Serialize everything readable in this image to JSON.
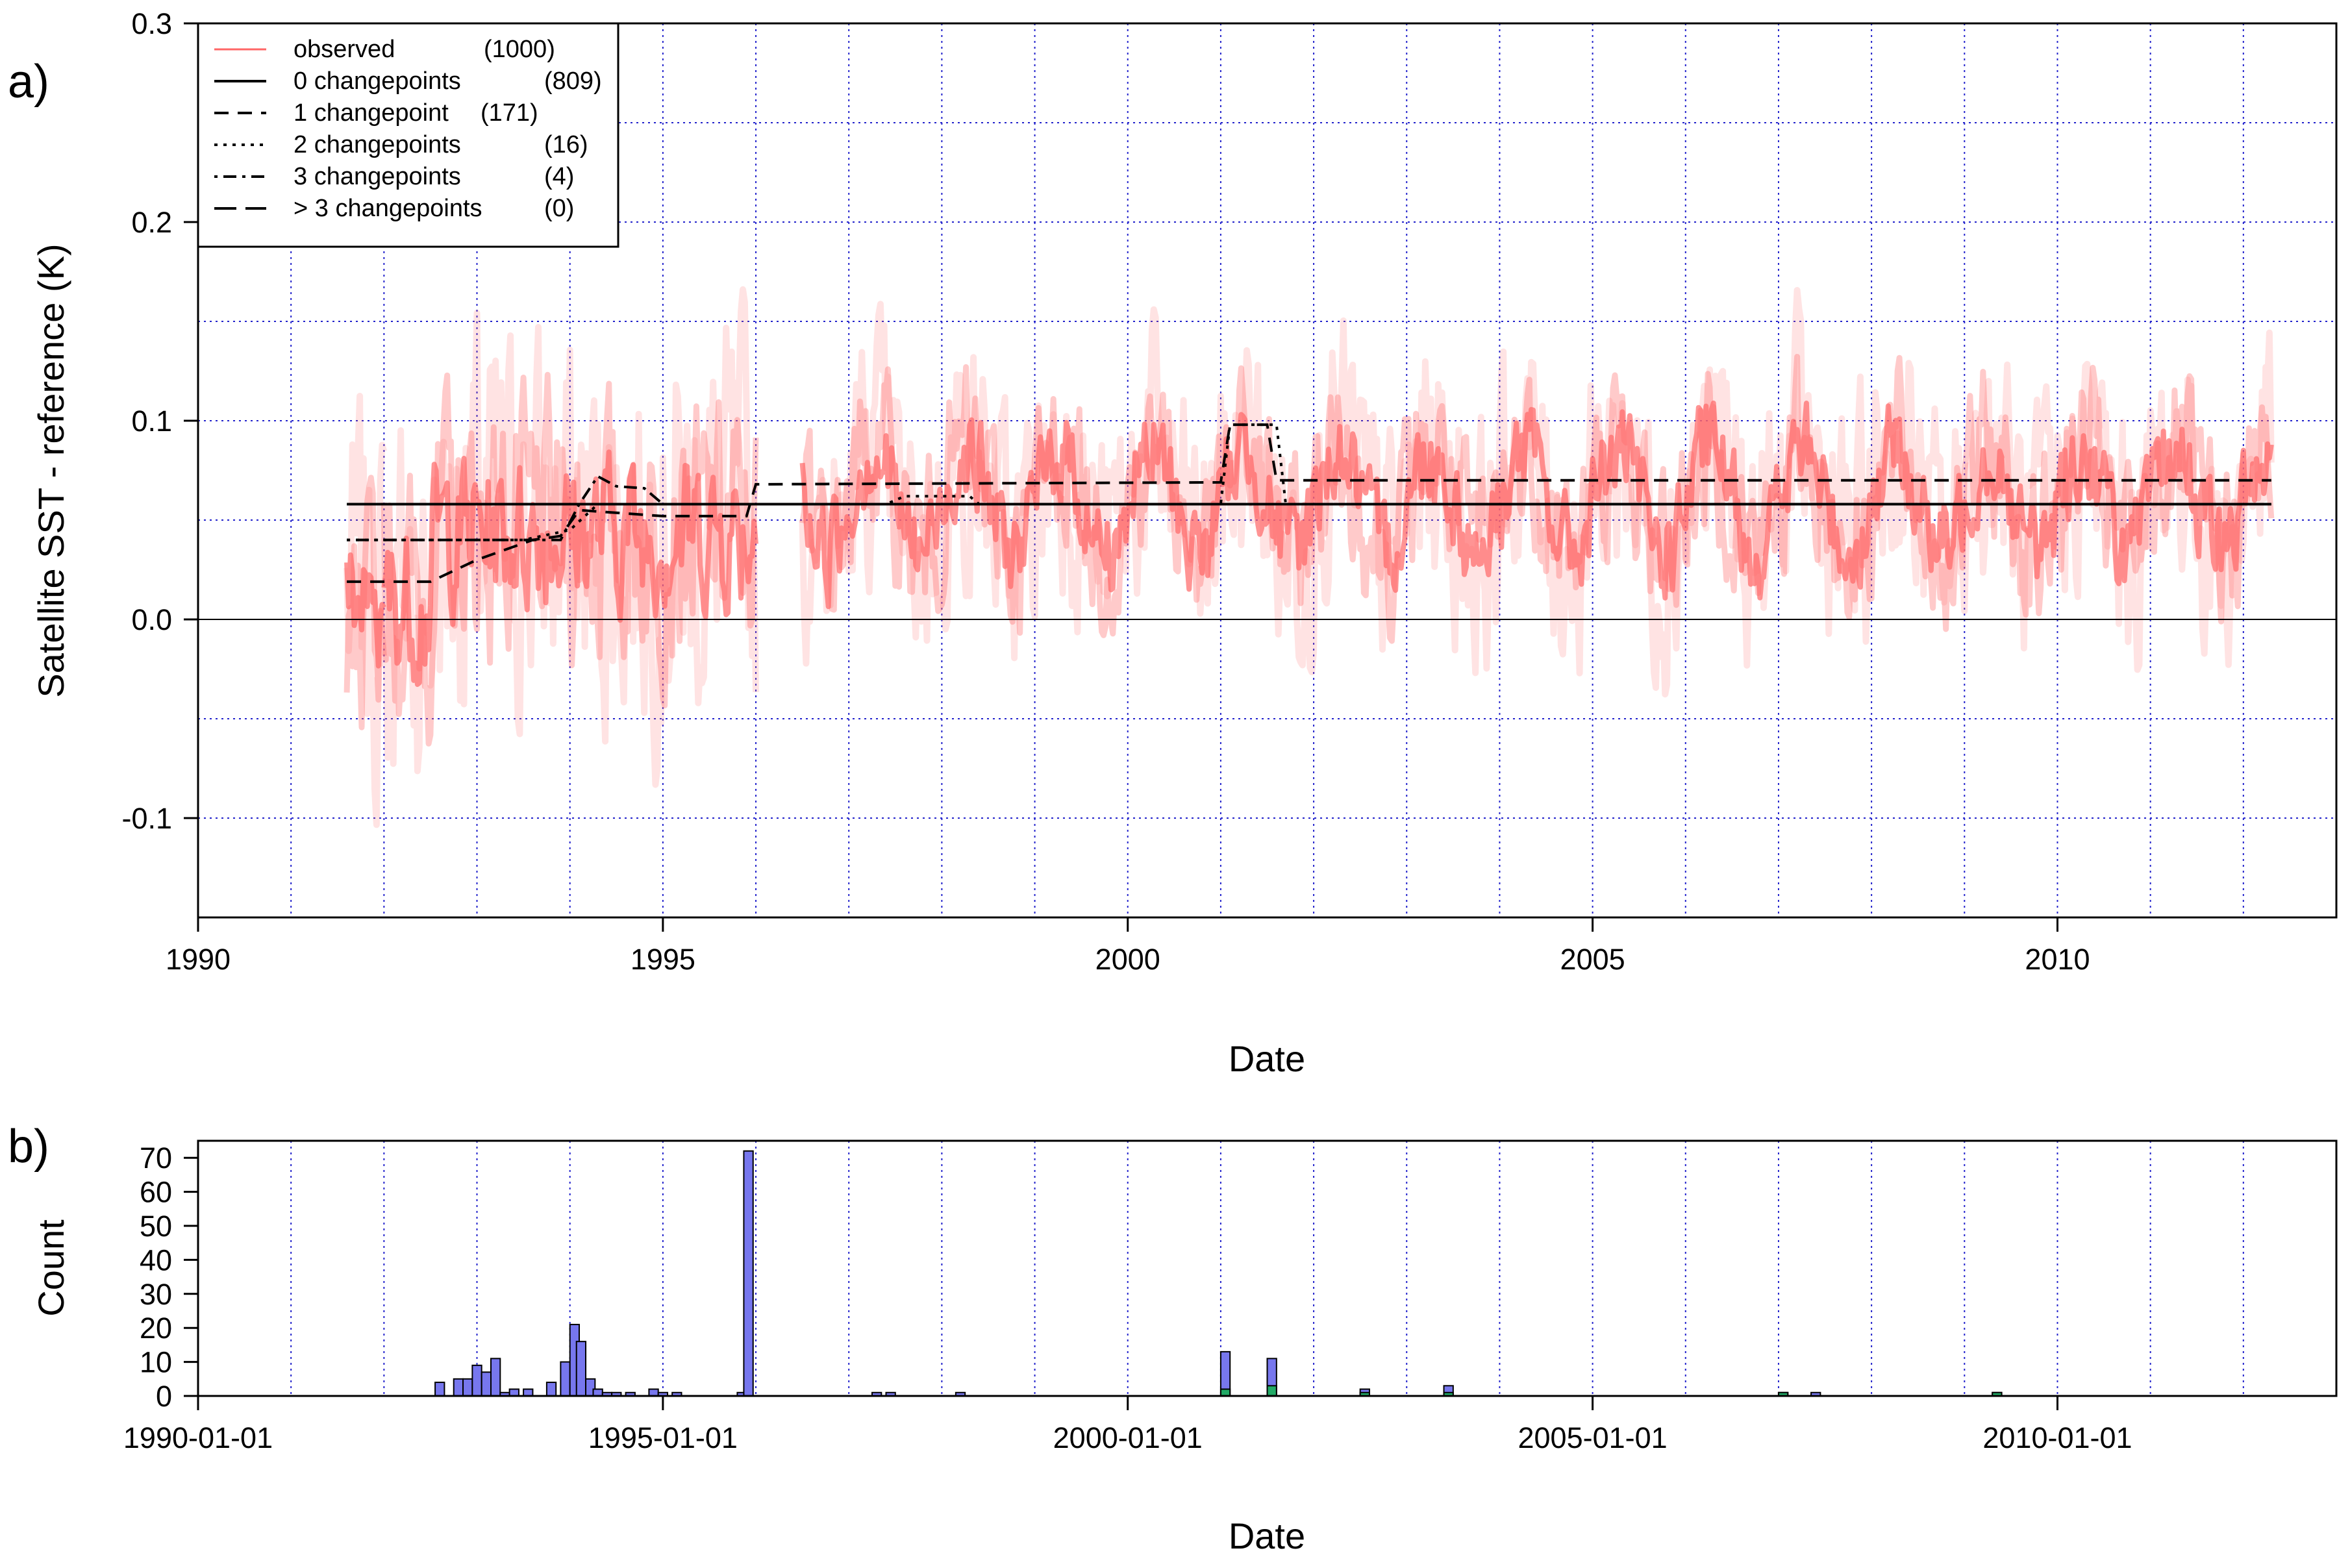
{
  "colors": {
    "observed": "#ff6666",
    "grid": "#2222cc",
    "hist_main": "#7777ee",
    "hist_sub": "#22aa66"
  },
  "chart_data": [
    {
      "type": "line",
      "panel_label": "a)",
      "xlabel": "Date",
      "ylabel": "Satellite SST - reference (K)",
      "xlim": [
        1990,
        2013
      ],
      "ylim": [
        -0.15,
        0.3
      ],
      "x_ticks": [
        1990,
        1995,
        2000,
        2005,
        2010
      ],
      "x_tick_labels": [
        "1990",
        "1995",
        "2000",
        "2005",
        "2010"
      ],
      "y_ticks": [
        -0.1,
        0.0,
        0.1,
        0.2,
        0.3
      ],
      "y_tick_labels": [
        "-0.1",
        "0.0",
        "0.1",
        "0.2",
        "0.3"
      ],
      "legend_position": "top-left",
      "legend": [
        {
          "label": "observed",
          "count": "(1000)",
          "style": "red"
        },
        {
          "label": "0 changepoints",
          "count": "(809)",
          "style": "solid"
        },
        {
          "label": "1 changepoint",
          "count": "(171)",
          "style": "dashed"
        },
        {
          "label": "2 changepoints",
          "count": "(16)",
          "style": "dotted"
        },
        {
          "label": "3 changepoints",
          "count": "(4)",
          "style": "dotdash"
        },
        {
          "label": "> 3 changepoints",
          "count": "(0)",
          "style": "longdash"
        }
      ],
      "observed_segments": [
        [
          1991.6,
          1992.0
        ],
        [
          1992.0,
          1996.0
        ],
        [
          1996.5,
          2012.3
        ]
      ],
      "series": [
        {
          "name": "0 changepoints",
          "style": "solid",
          "x": [
            1991.6,
            2012.3
          ],
          "y": [
            0.058,
            0.058
          ]
        },
        {
          "name": "1 changepoint",
          "style": "dashed",
          "x": [
            1991.6,
            1992.5,
            1993.0,
            1993.6,
            1993.9,
            1994.1,
            1995.0,
            1995.9,
            1996.0,
            2001.0,
            2001.1,
            2001.5,
            2001.6,
            2012.3
          ],
          "y": [
            0.019,
            0.019,
            0.03,
            0.04,
            0.042,
            0.055,
            0.052,
            0.052,
            0.068,
            0.069,
            0.098,
            0.098,
            0.07,
            0.07
          ]
        },
        {
          "name": "2 changepoints",
          "style": "dotted",
          "x": [
            1991.6,
            1993.5,
            1994.0,
            1994.3,
            1995.0,
            1997.4,
            1997.6,
            1998.3,
            1998.4,
            2001.0,
            2001.1,
            2001.6,
            2001.7,
            2012.3
          ],
          "y": [
            0.04,
            0.04,
            0.045,
            0.058,
            0.058,
            0.058,
            0.062,
            0.062,
            0.058,
            0.058,
            0.098,
            0.098,
            0.058,
            0.058
          ]
        },
        {
          "name": "3 changepoints",
          "style": "dotdash",
          "x": [
            1991.6,
            1993.9,
            1994.1,
            1994.3,
            1994.5,
            1994.8,
            1995.0,
            2012.3
          ],
          "y": [
            0.04,
            0.04,
            0.058,
            0.072,
            0.067,
            0.066,
            0.058,
            0.058
          ]
        }
      ]
    },
    {
      "type": "bar",
      "panel_label": "b)",
      "xlabel": "Date",
      "ylabel": "Count",
      "xlim": [
        1990,
        2013
      ],
      "ylim": [
        0,
        75
      ],
      "x_ticks": [
        1990,
        1995,
        2000,
        2005,
        2010
      ],
      "x_tick_labels": [
        "1990-01-01",
        "1995-01-01",
        "2000-01-01",
        "2005-01-01",
        "2010-01-01"
      ],
      "y_ticks": [
        0,
        10,
        20,
        30,
        40,
        50,
        60,
        70
      ],
      "y_tick_labels": [
        "0",
        "10",
        "20",
        "30",
        "40",
        "50",
        "60",
        "70"
      ],
      "bar_width_years": 0.1,
      "bars": [
        {
          "x": 1992.6,
          "value": 4
        },
        {
          "x": 1992.8,
          "value": 5
        },
        {
          "x": 1992.9,
          "value": 5
        },
        {
          "x": 1993.0,
          "value": 9
        },
        {
          "x": 1993.1,
          "value": 7
        },
        {
          "x": 1993.2,
          "value": 11
        },
        {
          "x": 1993.3,
          "value": 1
        },
        {
          "x": 1993.4,
          "value": 2
        },
        {
          "x": 1993.55,
          "value": 2
        },
        {
          "x": 1993.8,
          "value": 4
        },
        {
          "x": 1993.95,
          "value": 10
        },
        {
          "x": 1994.05,
          "value": 21
        },
        {
          "x": 1994.12,
          "value": 16
        },
        {
          "x": 1994.22,
          "value": 5
        },
        {
          "x": 1994.3,
          "value": 2
        },
        {
          "x": 1994.4,
          "value": 1
        },
        {
          "x": 1994.5,
          "value": 1
        },
        {
          "x": 1994.65,
          "value": 1
        },
        {
          "x": 1994.9,
          "value": 2
        },
        {
          "x": 1995.0,
          "value": 1
        },
        {
          "x": 1995.15,
          "value": 1
        },
        {
          "x": 1995.85,
          "value": 1
        },
        {
          "x": 1995.92,
          "value": 72
        },
        {
          "x": 1997.3,
          "value": 1
        },
        {
          "x": 1997.45,
          "value": 1
        },
        {
          "x": 1998.2,
          "value": 1
        },
        {
          "x": 2001.05,
          "value": 13,
          "sub": 2
        },
        {
          "x": 2001.55,
          "value": 11,
          "sub": 3
        },
        {
          "x": 2002.55,
          "value": 2,
          "sub": 1
        },
        {
          "x": 2003.45,
          "value": 3,
          "sub": 1
        },
        {
          "x": 2007.05,
          "value": 1,
          "sub": 1
        },
        {
          "x": 2007.4,
          "value": 1
        },
        {
          "x": 2009.35,
          "value": 1,
          "sub": 1
        }
      ]
    }
  ]
}
